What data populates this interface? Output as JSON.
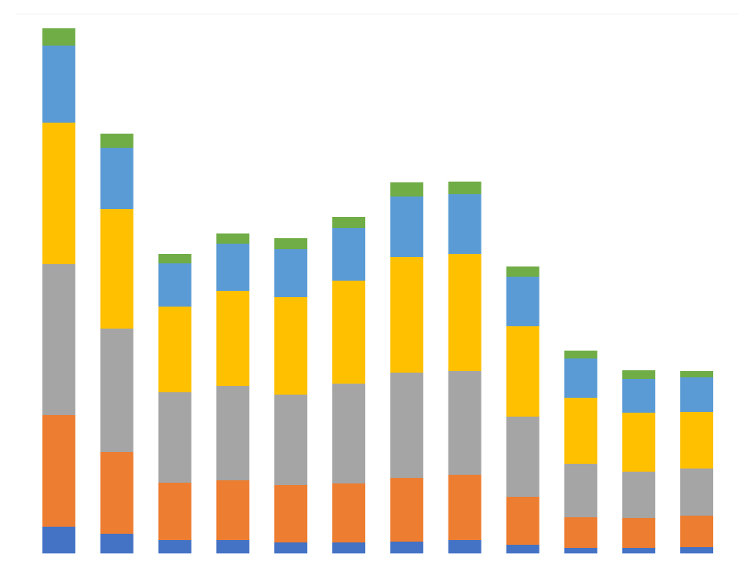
{
  "chart_data": {
    "type": "stacked-bar",
    "categories": [
      null,
      null,
      null,
      null,
      null,
      null,
      null,
      null,
      null,
      null,
      null,
      null
    ],
    "series": [
      {
        "color": "#4472c4",
        "values": [
          34,
          25,
          17,
          17,
          14,
          14,
          15,
          17,
          11,
          7,
          7,
          8
        ]
      },
      {
        "color": "#ed7d31",
        "values": [
          142,
          104,
          73,
          76,
          73,
          75,
          81,
          83,
          61,
          39,
          38,
          40
        ]
      },
      {
        "color": "#a5a5a5",
        "values": [
          192,
          157,
          115,
          120,
          115,
          127,
          134,
          132,
          102,
          68,
          59,
          60
        ]
      },
      {
        "color": "#ffc000",
        "values": [
          180,
          152,
          109,
          121,
          124,
          131,
          147,
          149,
          115,
          84,
          75,
          72
        ]
      },
      {
        "color": "#5b9bd5",
        "values": [
          98,
          78,
          55,
          60,
          61,
          67,
          77,
          76,
          63,
          50,
          43,
          44
        ]
      },
      {
        "color": "#70ad47",
        "values": [
          22,
          18,
          12,
          13,
          14,
          14,
          18,
          16,
          13,
          10,
          11,
          8
        ]
      }
    ],
    "ylim": [
      0,
      704
    ]
  }
}
